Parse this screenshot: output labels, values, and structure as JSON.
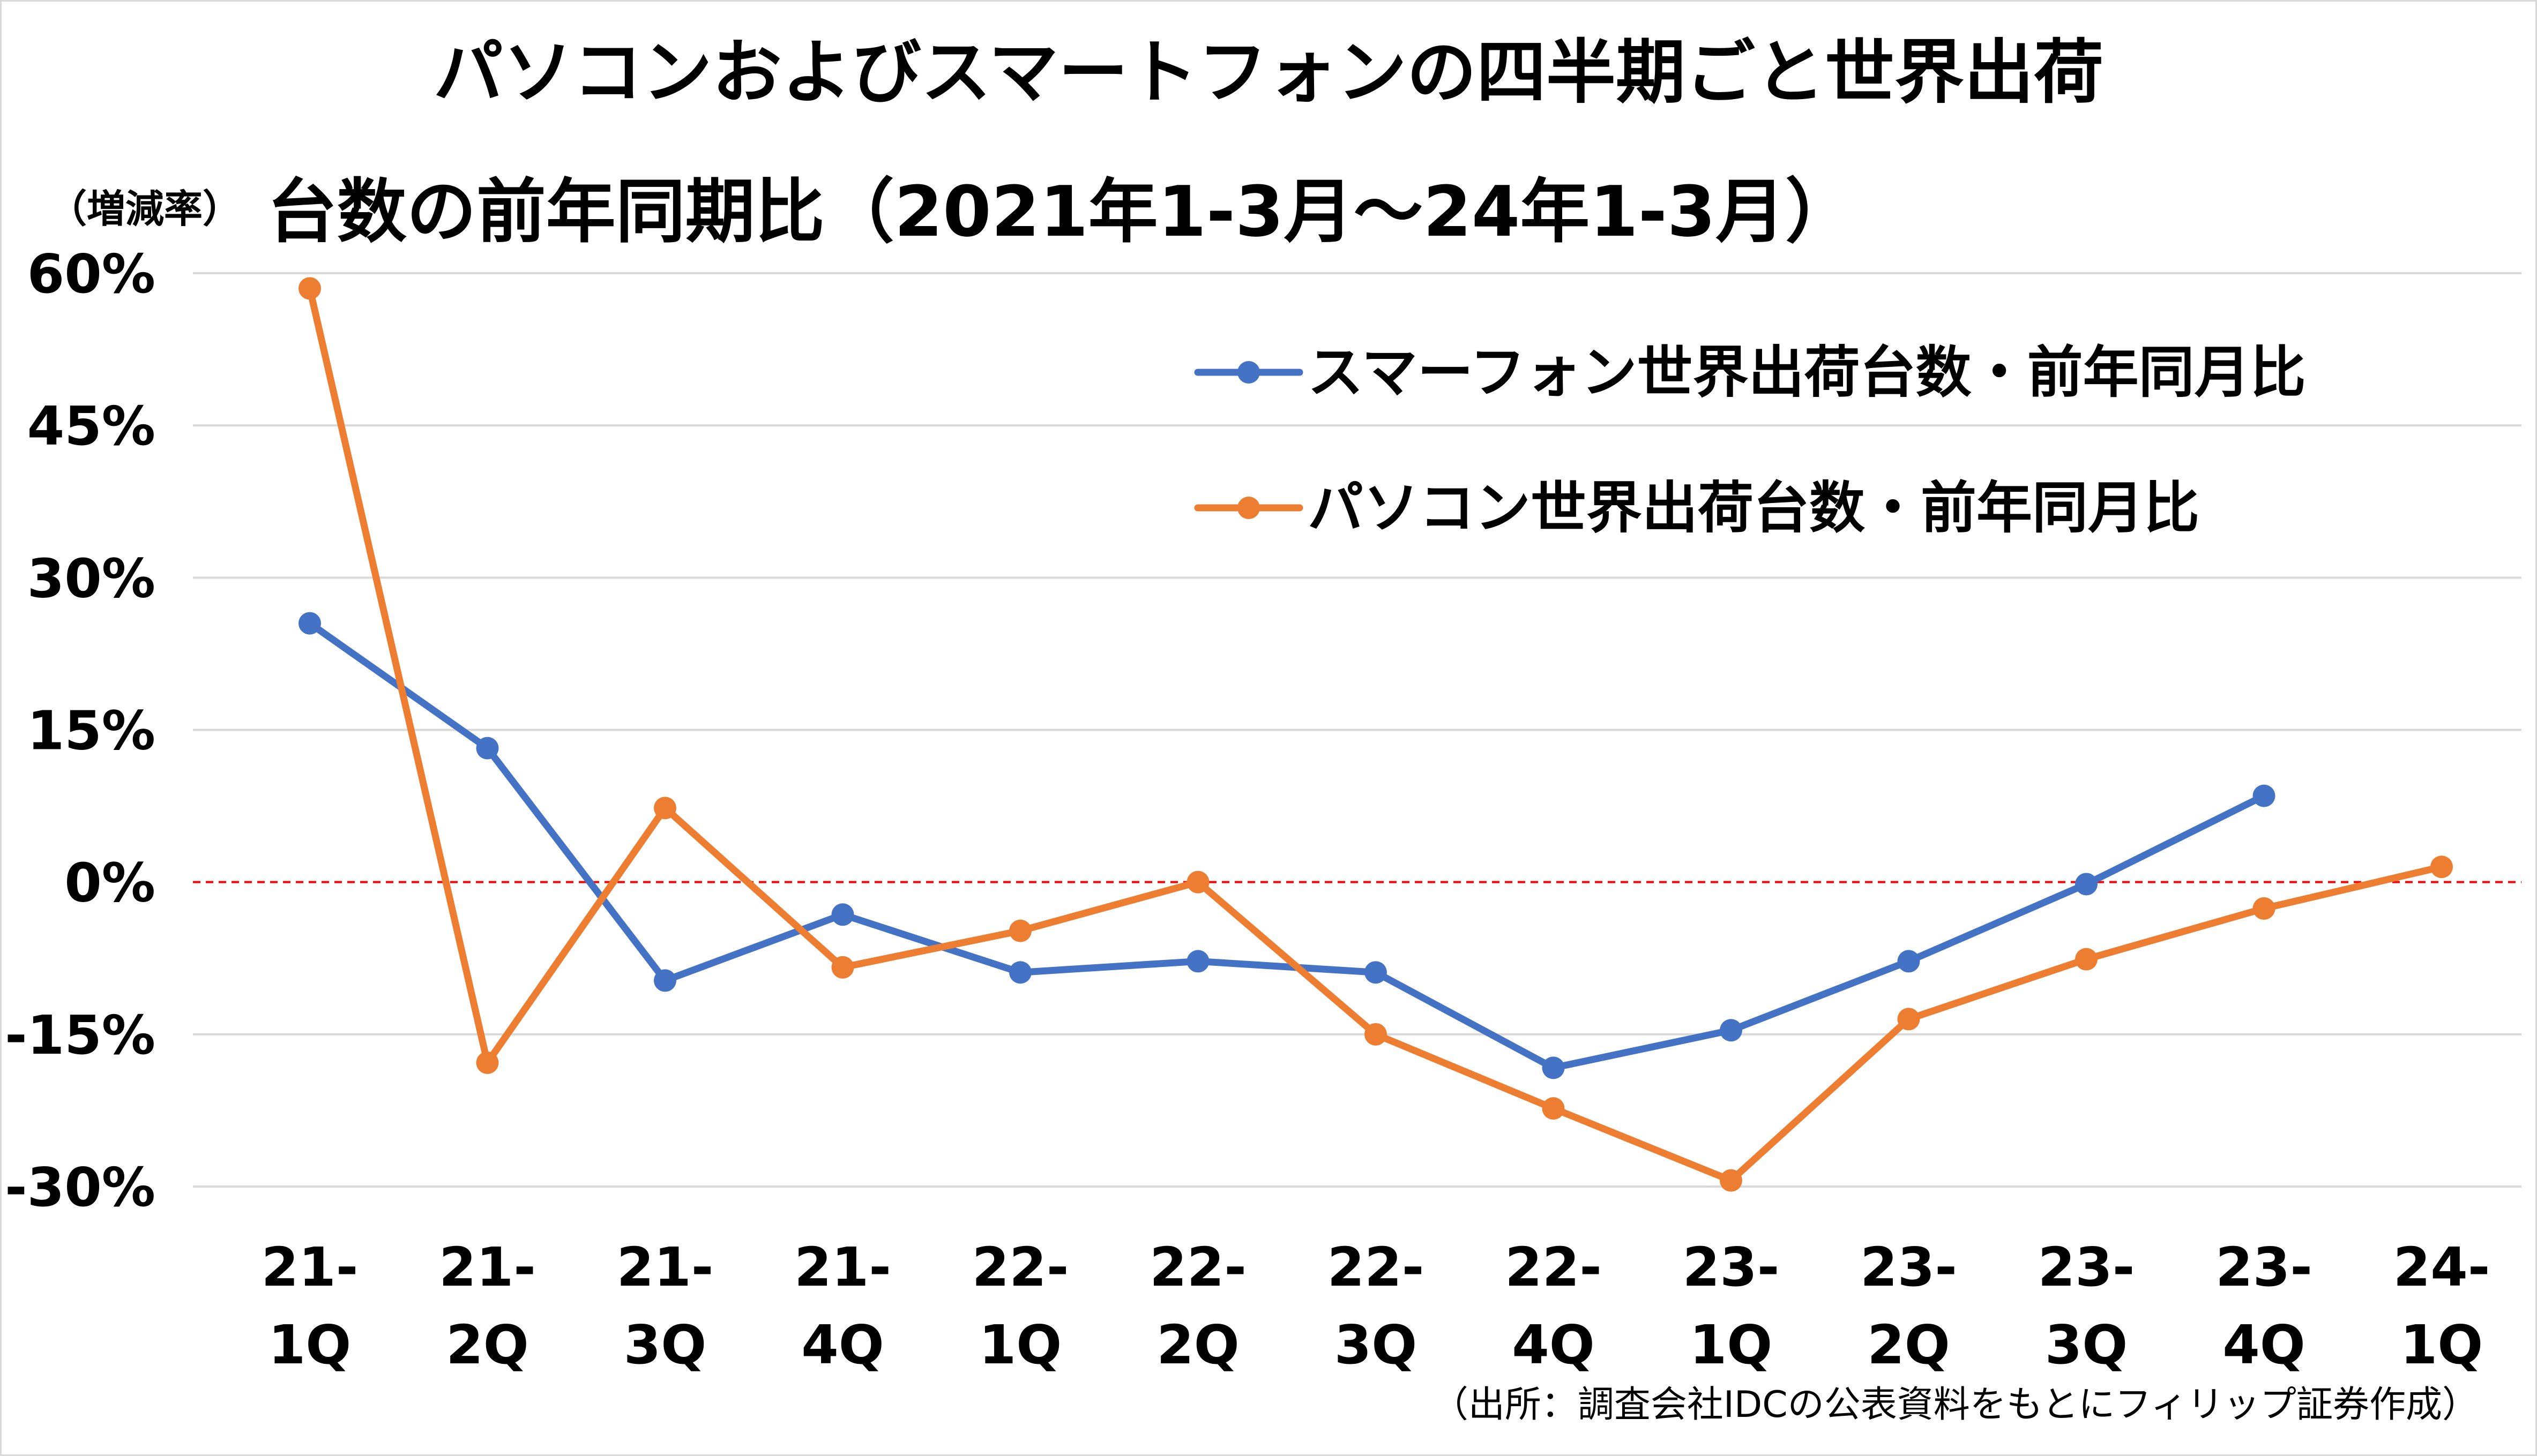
{
  "chart_data": {
    "type": "line",
    "title": [
      "パソコンおよびスマートフォンの四半期ごと世界出荷",
      "台数の前年同期比（2021年1-3月～24年1-3月）"
    ],
    "ylabel": "（増減率）",
    "ylim": [
      -30,
      60
    ],
    "yticks": [
      60,
      45,
      30,
      15,
      0,
      -15,
      -30
    ],
    "ytick_labels": [
      "60%",
      "45%",
      "30%",
      "15%",
      "0%",
      "-15%",
      "-30%"
    ],
    "categories": [
      [
        "21-",
        "1Q"
      ],
      [
        "21-",
        "2Q"
      ],
      [
        "21-",
        "3Q"
      ],
      [
        "21-",
        "4Q"
      ],
      [
        "22-",
        "1Q"
      ],
      [
        "22-",
        "2Q"
      ],
      [
        "22-",
        "3Q"
      ],
      [
        "22-",
        "4Q"
      ],
      [
        "23-",
        "1Q"
      ],
      [
        "23-",
        "2Q"
      ],
      [
        "23-",
        "3Q"
      ],
      [
        "23-",
        "4Q"
      ],
      [
        "24-",
        "1Q"
      ]
    ],
    "grid": true,
    "zero_reference_line": true,
    "legend_position": "top-right",
    "series": [
      {
        "name": "スマーフォン世界出荷台数・前年同月比",
        "color": "#4472c4",
        "values": [
          25.5,
          13.2,
          -9.7,
          -3.2,
          -8.9,
          -7.8,
          -8.9,
          -18.3,
          -14.6,
          -7.8,
          -0.2,
          8.5,
          null
        ]
      },
      {
        "name": "パソコン世界出荷台数・前年同月比",
        "color": "#ed7d31",
        "values": [
          58.5,
          -17.8,
          7.3,
          -8.4,
          -4.8,
          0.0,
          -15.0,
          -22.3,
          -29.4,
          -13.5,
          -7.6,
          -2.6,
          1.5
        ]
      }
    ],
    "source": "（出所：調査会社IDCの公表資料をもとにフィリップ証券作成）"
  }
}
